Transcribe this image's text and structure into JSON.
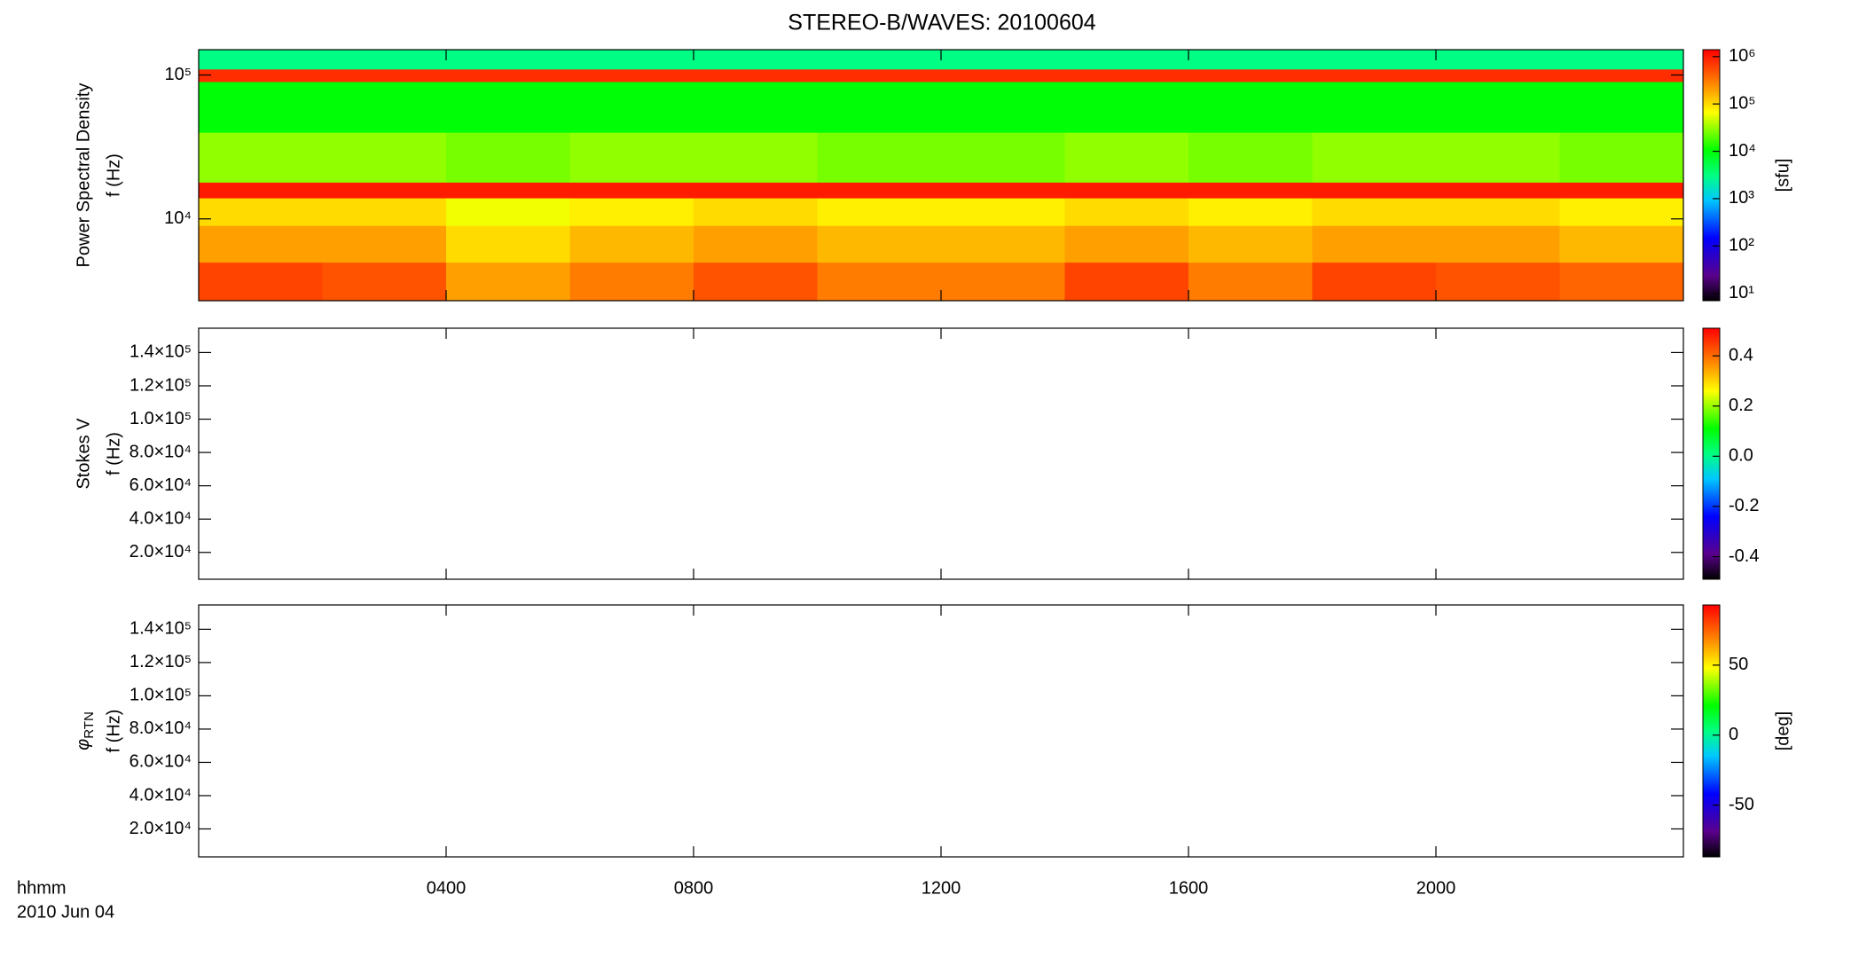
{
  "chart_data": [
    {
      "type": "heatmap",
      "title": "STEREO-B/WAVES: 20100604",
      "ylabel": [
        "Power Spectral Density",
        "f (Hz)"
      ],
      "ylog": true,
      "ylim": [
        2700,
        150000
      ],
      "yticks": [
        {
          "value": 10000,
          "label": "10⁴"
        },
        {
          "value": 100000,
          "label": "10⁵"
        }
      ],
      "xlim": [
        0,
        24
      ],
      "x_bins": [
        0,
        2,
        4,
        6,
        8,
        10,
        12,
        14,
        16,
        18,
        20,
        22,
        24
      ],
      "y_bins": [
        2700,
        5000,
        9000,
        14000,
        18000,
        40000,
        90000,
        110000,
        150000
      ],
      "z": [
        [
          600000,
          500000,
          200000,
          300000,
          500000,
          300000,
          300000,
          600000,
          300000,
          600000,
          500000,
          400000
        ],
        [
          200000,
          200000,
          100000,
          150000,
          200000,
          150000,
          150000,
          200000,
          150000,
          200000,
          200000,
          150000
        ],
        [
          100000,
          100000,
          60000,
          80000,
          100000,
          80000,
          80000,
          100000,
          80000,
          100000,
          100000,
          80000
        ],
        [
          1000000,
          1000000,
          1000000,
          1000000,
          1000000,
          1000000,
          1000000,
          1000000,
          1000000,
          1000000,
          1000000,
          1000000
        ],
        [
          30000,
          30000,
          25000,
          30000,
          30000,
          25000,
          25000,
          30000,
          25000,
          30000,
          30000,
          25000
        ],
        [
          10000,
          10000,
          10000,
          10000,
          10000,
          10000,
          10000,
          10000,
          10000,
          10000,
          10000,
          10000
        ],
        [
          800000,
          800000,
          800000,
          800000,
          800000,
          800000,
          800000,
          800000,
          800000,
          800000,
          800000,
          800000
        ],
        [
          3000,
          3000,
          3000,
          3000,
          3000,
          3000,
          3000,
          3000,
          3000,
          3000,
          3000,
          3000
        ]
      ],
      "colormap": "rainbow",
      "zlog": true,
      "zlim": [
        7,
        1400000
      ],
      "zticks": [
        {
          "value": 10,
          "label": "10¹"
        },
        {
          "value": 100,
          "label": "10²"
        },
        {
          "value": 1000,
          "label": "10³"
        },
        {
          "value": 10000,
          "label": "10⁴"
        },
        {
          "value": 100000,
          "label": "10⁵"
        },
        {
          "value": 1000000,
          "label": "10⁶"
        }
      ],
      "colorbar_label": "[sfu]"
    },
    {
      "type": "heatmap",
      "ylabel": [
        "Stokes V",
        "f (Hz)"
      ],
      "ylog": false,
      "ylim": [
        3900,
        154600
      ],
      "yticks": [
        {
          "value": 20000,
          "label": "2.0×10⁴"
        },
        {
          "value": 40000,
          "label": "4.0×10⁴"
        },
        {
          "value": 60000,
          "label": "6.0×10⁴"
        },
        {
          "value": 80000,
          "label": "8.0×10⁴"
        },
        {
          "value": 100000,
          "label": "1.0×10⁵"
        },
        {
          "value": 120000,
          "label": "1.2×10⁵"
        },
        {
          "value": 140000,
          "label": "1.4×10⁵"
        }
      ],
      "xlim": [
        0,
        24
      ],
      "colormap": "rainbow",
      "zlog": false,
      "zlim": [
        -0.49,
        0.51
      ],
      "zticks": [
        -0.4,
        -0.2,
        {
          "value": 0,
          "label": "0.0"
        },
        0.2,
        0.4
      ]
    },
    {
      "type": "heatmap",
      "ylabel_symbol": "φ",
      "ylabel_sub": "RTN",
      "ylabel": [
        "f (Hz)"
      ],
      "ylog": false,
      "ylim": [
        3200,
        154600
      ],
      "yticks": [
        {
          "value": 20000,
          "label": "2.0×10⁴"
        },
        {
          "value": 40000,
          "label": "4.0×10⁴"
        },
        {
          "value": 60000,
          "label": "6.0×10⁴"
        },
        {
          "value": 80000,
          "label": "8.0×10⁴"
        },
        {
          "value": 100000,
          "label": "1.0×10⁵"
        },
        {
          "value": 120000,
          "label": "1.2×10⁵"
        },
        {
          "value": 140000,
          "label": "1.4×10⁵"
        }
      ],
      "xlim": [
        0,
        24
      ],
      "xticks": [
        {
          "value": 4,
          "label": "0400"
        },
        {
          "value": 8,
          "label": "0800"
        },
        {
          "value": 12,
          "label": "1200"
        },
        {
          "value": 16,
          "label": "1600"
        },
        {
          "value": 20,
          "label": "2000"
        }
      ],
      "xlabel": "hhmm",
      "date_label": "2010 Jun 04",
      "colormap": "rainbow",
      "zlog": false,
      "zlim": [
        -87,
        93
      ],
      "zticks": [
        -50,
        0,
        50
      ],
      "colorbar_label": "[deg]"
    }
  ]
}
